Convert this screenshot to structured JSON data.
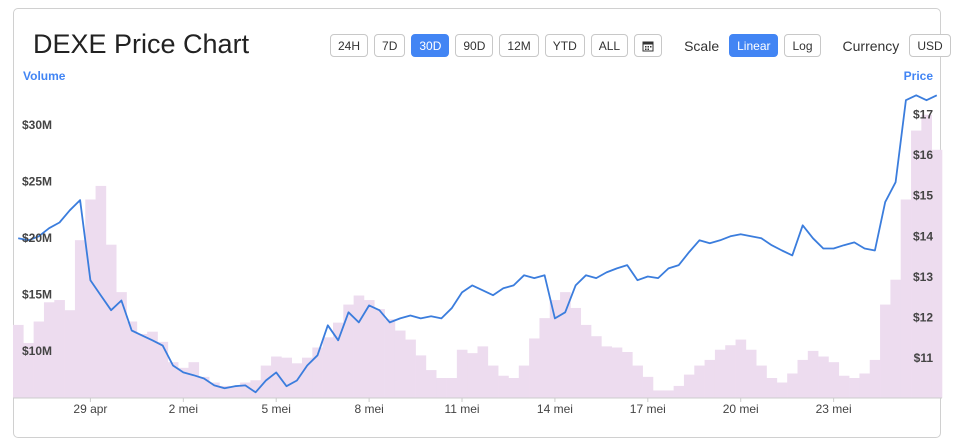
{
  "ui": {
    "title": "DEXE Price Chart",
    "ranges": [
      {
        "label": "24H"
      },
      {
        "label": "7D"
      },
      {
        "label": "30D",
        "selected": true
      },
      {
        "label": "90D"
      },
      {
        "label": "12M"
      },
      {
        "label": "YTD"
      },
      {
        "label": "ALL"
      }
    ],
    "scale_label": "Scale",
    "scales": [
      {
        "label": "Linear",
        "selected": true
      },
      {
        "label": "Log"
      }
    ],
    "currency_label": "Currency",
    "currency": "USD"
  },
  "chart_data": {
    "type": "line",
    "ylabel": "Volume",
    "y2label": "Price",
    "categories": [
      null,
      null,
      null,
      null,
      null,
      null,
      null,
      "29 apr",
      null,
      null,
      null,
      null,
      null,
      null,
      null,
      null,
      "2 mei",
      null,
      null,
      null,
      null,
      null,
      null,
      null,
      null,
      "5 mei",
      null,
      null,
      null,
      null,
      null,
      null,
      null,
      null,
      "8 mei",
      null,
      null,
      null,
      null,
      null,
      null,
      null,
      null,
      "11 mei",
      null,
      null,
      null,
      null,
      null,
      null,
      null,
      null,
      "14 mei",
      null,
      null,
      null,
      null,
      null,
      null,
      null,
      null,
      "17 mei",
      null,
      null,
      null,
      null,
      null,
      null,
      null,
      null,
      "20 mei",
      null,
      null,
      null,
      null,
      null,
      null,
      null,
      null,
      "23 mei",
      null,
      null,
      null,
      null,
      null,
      null,
      null,
      null,
      null,
      null
    ],
    "series": [
      {
        "type": "bar",
        "color": "#eddcef",
        "values": [
          12400000,
          10800000,
          12700000,
          14400000,
          14600000,
          13700000,
          19900000,
          23500000,
          24700000,
          19500000,
          15300000,
          12700000,
          11600000,
          11800000,
          10900000,
          9100000,
          8600000,
          9100000,
          7800000,
          7300000,
          7000000,
          6900000,
          7300000,
          7500000,
          8800000,
          9600000,
          9500000,
          9000000,
          9500000,
          10400000,
          11300000,
          12600000,
          14200000,
          15000000,
          14600000,
          13800000,
          12900000,
          11900000,
          11100000,
          9700000,
          8400000,
          7700000,
          7700000,
          10200000,
          9900000,
          10500000,
          8800000,
          7900000,
          7700000,
          8800000,
          11200000,
          13000000,
          14600000,
          15300000,
          13900000,
          12400000,
          11400000,
          10500000,
          10400000,
          10000000,
          8800000,
          7800000,
          6600000,
          6600000,
          7000000,
          8000000,
          8800000,
          9300000,
          10200000,
          10600000,
          11100000,
          10200000,
          8800000,
          7700000,
          7300000,
          8100000,
          9300000,
          10100000,
          9600000,
          9100000,
          7900000,
          7700000,
          8100000,
          9300000,
          14200000,
          16400000,
          23500000,
          29600000,
          31000000,
          27900000
        ]
      },
      {
        "type": "line",
        "axis": "y2",
        "color": "#3b7ddd",
        "values": [
          13.97,
          13.92,
          14.02,
          14.22,
          14.36,
          14.66,
          14.91,
          12.94,
          12.57,
          12.2,
          12.44,
          11.7,
          11.58,
          11.46,
          11.33,
          10.84,
          10.67,
          10.6,
          10.52,
          10.35,
          10.28,
          10.33,
          10.35,
          10.18,
          10.47,
          10.67,
          10.33,
          10.47,
          10.84,
          11.09,
          11.83,
          11.46,
          12.15,
          11.9,
          12.32,
          12.2,
          11.9,
          12.0,
          12.07,
          12.0,
          12.05,
          12.0,
          12.25,
          12.64,
          12.81,
          12.69,
          12.57,
          12.74,
          12.81,
          13.06,
          12.99,
          13.06,
          12.0,
          12.15,
          12.81,
          13.06,
          12.99,
          13.13,
          13.23,
          13.31,
          12.94,
          13.03,
          12.99,
          13.23,
          13.31,
          13.63,
          13.92,
          13.85,
          13.92,
          14.02,
          14.07,
          14.02,
          13.97,
          13.8,
          13.67,
          13.55,
          14.29,
          13.97,
          13.72,
          13.72,
          13.8,
          13.87,
          13.72,
          13.67,
          14.86,
          15.35,
          17.37,
          17.49,
          17.37,
          17.49
        ]
      }
    ],
    "ylim": [
      5930000,
      33190000
    ],
    "yticks": [
      {
        "value": 10000000,
        "label": "$10M"
      },
      {
        "value": 15000000,
        "label": "$15M"
      },
      {
        "value": 20000000,
        "label": "$20M"
      },
      {
        "value": 25000000,
        "label": "$25M"
      },
      {
        "value": 30000000,
        "label": "$30M"
      }
    ],
    "y2lim": [
      10.04,
      17.62
    ],
    "y2ticks": [
      {
        "value": 11,
        "label": "$11"
      },
      {
        "value": 12,
        "label": "$12"
      },
      {
        "value": 13,
        "label": "$13"
      },
      {
        "value": 14,
        "label": "$14"
      },
      {
        "value": 15,
        "label": "$15"
      },
      {
        "value": 16,
        "label": "$16"
      },
      {
        "value": 17,
        "label": "$17"
      }
    ],
    "grid": false
  }
}
